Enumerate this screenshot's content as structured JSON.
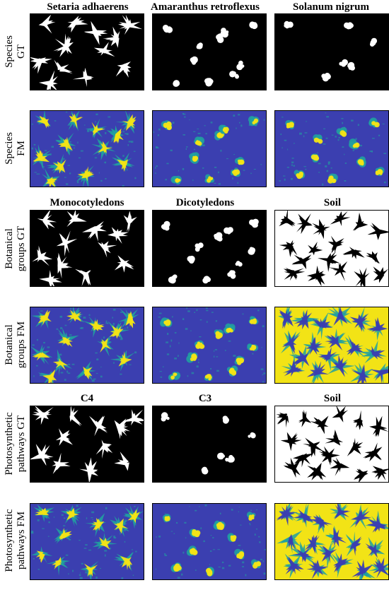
{
  "columns": {
    "species": [
      "Setaria adhaerens",
      "Amaranthus retroflexus",
      "Solanum nigrum"
    ],
    "botanical": [
      "Monocotyledons",
      "Dicotyledons",
      "Soil"
    ],
    "photosynthetic": [
      "C4",
      "C3",
      "Soil"
    ]
  },
  "rows": [
    {
      "line1": "Species",
      "line2": "GT"
    },
    {
      "line1": "Species",
      "line2": "FM"
    },
    {
      "line1": "Botanical",
      "line2": "groups GT"
    },
    {
      "line1": "Botanical",
      "line2": "groups FM"
    },
    {
      "line1": "Photosynthetic",
      "line2": "pathways GT"
    },
    {
      "line1": "Photosynthetic",
      "line2": "pathways FM"
    }
  ],
  "colors": {
    "gt_background": "#000000",
    "gt_foreground": "#ffffff",
    "fm_low": "#3b3fb0",
    "fm_mid": "#21a0a0",
    "fm_high": "#f2e316"
  }
}
